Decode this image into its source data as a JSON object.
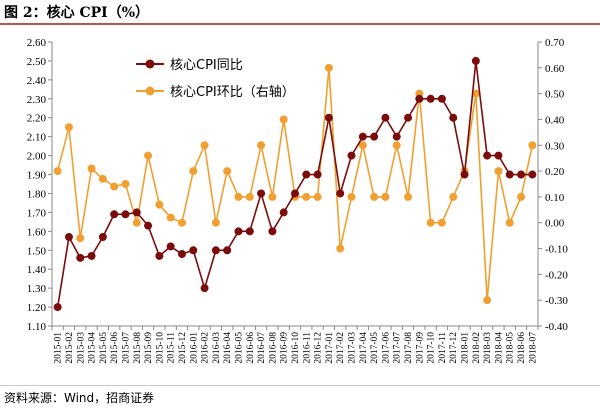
{
  "header": {
    "title": "图 2：核心 CPI（%）"
  },
  "footer": {
    "source": "资料来源：Wind，招商证券"
  },
  "chart_data": {
    "type": "line",
    "x": [
      "2015-01",
      "2015-02",
      "2015-03",
      "2015-04",
      "2015-05",
      "2015-06",
      "2015-07",
      "2015-08",
      "2015-09",
      "2015-10",
      "2015-11",
      "2015-12",
      "2016-01",
      "2016-02",
      "2016-03",
      "2016-04",
      "2016-05",
      "2016-06",
      "2016-07",
      "2016-08",
      "2016-09",
      "2016-10",
      "2016-11",
      "2016-12",
      "2017-01",
      "2017-02",
      "2017-03",
      "2017-04",
      "2017-05",
      "2017-06",
      "2017-07",
      "2017-08",
      "2017-09",
      "2017-10",
      "2017-11",
      "2017-12",
      "2018-01",
      "2018-02",
      "2018-03",
      "2018-04",
      "2018-05",
      "2018-06",
      "2018-07"
    ],
    "series": [
      {
        "name": "核心CPI同比",
        "axis": "left",
        "color": "#7b0c0c",
        "values": [
          1.2,
          1.57,
          1.46,
          1.47,
          1.57,
          1.69,
          1.69,
          1.7,
          1.63,
          1.47,
          1.52,
          1.48,
          1.5,
          1.3,
          1.5,
          1.5,
          1.6,
          1.6,
          1.8,
          1.6,
          1.7,
          1.8,
          1.9,
          1.9,
          2.2,
          1.8,
          2.0,
          2.1,
          2.1,
          2.2,
          2.1,
          2.2,
          2.3,
          2.3,
          2.3,
          2.2,
          1.9,
          2.5,
          2.0,
          2.0,
          1.9,
          1.9,
          1.9
        ]
      },
      {
        "name": "核心CPI环比（右轴）",
        "axis": "right",
        "color": "#f0a030",
        "values": [
          0.2,
          0.37,
          -0.06,
          0.21,
          0.17,
          0.14,
          0.15,
          0.0,
          0.26,
          0.07,
          0.02,
          0.0,
          0.2,
          0.3,
          0.0,
          0.2,
          0.1,
          0.1,
          0.3,
          0.1,
          0.4,
          0.1,
          0.1,
          0.1,
          0.6,
          -0.1,
          0.1,
          0.3,
          0.1,
          0.1,
          0.3,
          0.1,
          0.5,
          0.0,
          0.0,
          0.1,
          0.2,
          0.5,
          -0.3,
          0.2,
          0.0,
          0.1,
          0.3
        ]
      }
    ],
    "y_left": {
      "min": 1.1,
      "max": 2.6,
      "step": 0.1,
      "tick_labels": [
        "1.10",
        "1.20",
        "1.30",
        "1.40",
        "1.50",
        "1.60",
        "1.70",
        "1.80",
        "1.90",
        "2.00",
        "2.10",
        "2.20",
        "2.30",
        "2.40",
        "2.50",
        "2.60"
      ]
    },
    "y_right": {
      "min": -0.4,
      "max": 0.7,
      "step": 0.1,
      "tick_labels": [
        "-0.40",
        "-0.30",
        "-0.20",
        "-0.10",
        "0.00",
        "0.10",
        "0.20",
        "0.30",
        "0.40",
        "0.50",
        "0.60",
        "0.70"
      ]
    },
    "grid": false,
    "legend_position": "top-left"
  }
}
